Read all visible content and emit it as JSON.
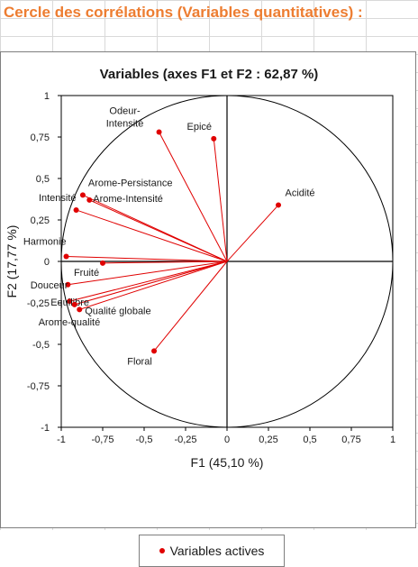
{
  "page": {
    "title": "Cercle des corrélations (Variables quantitatives) :",
    "colors": {
      "title": "#ed7d31",
      "series": "#e00000",
      "axes": "#000000",
      "grid": "#d9d9d9"
    }
  },
  "chart_data": {
    "type": "scatter",
    "title": "Variables (axes F1 et F2 : 62,87 %)",
    "xlabel": "F1 (45,10 %)",
    "ylabel": "F2 (17,77 %)",
    "xlim": [
      -1,
      1
    ],
    "ylim": [
      -1,
      1
    ],
    "x_ticks": [
      "-1",
      "-0,75",
      "-0,5",
      "-0,25",
      "0",
      "0,25",
      "0,5",
      "0,75",
      "1"
    ],
    "y_ticks": [
      "1",
      "0,75",
      "0,5",
      "0,25",
      "0",
      "-0,25",
      "-0,5",
      "-0,75",
      "-1"
    ],
    "grid": false,
    "correlation_circle": true,
    "vectors_from_origin": true,
    "legend": {
      "placement": "bottom",
      "entries": [
        "Variables actives"
      ]
    },
    "series": [
      {
        "name": "Variables actives",
        "points": [
          {
            "label": "Odeur-\nIntensité",
            "x": -0.41,
            "y": 0.78
          },
          {
            "label": "Epicé",
            "x": -0.08,
            "y": 0.74
          },
          {
            "label": "Acidité",
            "x": 0.31,
            "y": 0.34
          },
          {
            "label": "Arome-Persistance",
            "x": -0.87,
            "y": 0.4
          },
          {
            "label": "Arome-Intensité",
            "x": -0.83,
            "y": 0.37
          },
          {
            "label": "Intensité",
            "x": -0.91,
            "y": 0.31
          },
          {
            "label": "Harmonie",
            "x": -0.97,
            "y": 0.03
          },
          {
            "label": "Fruité",
            "x": -0.75,
            "y": -0.01
          },
          {
            "label": "Douceur",
            "x": -0.96,
            "y": -0.14
          },
          {
            "label": "Equilibre",
            "x": -0.95,
            "y": -0.24
          },
          {
            "label": "Arome-qualité",
            "x": -0.92,
            "y": -0.26
          },
          {
            "label": "Qualité globale",
            "x": -0.89,
            "y": -0.29
          },
          {
            "label": "Floral",
            "x": -0.44,
            "y": -0.54
          }
        ]
      }
    ]
  }
}
